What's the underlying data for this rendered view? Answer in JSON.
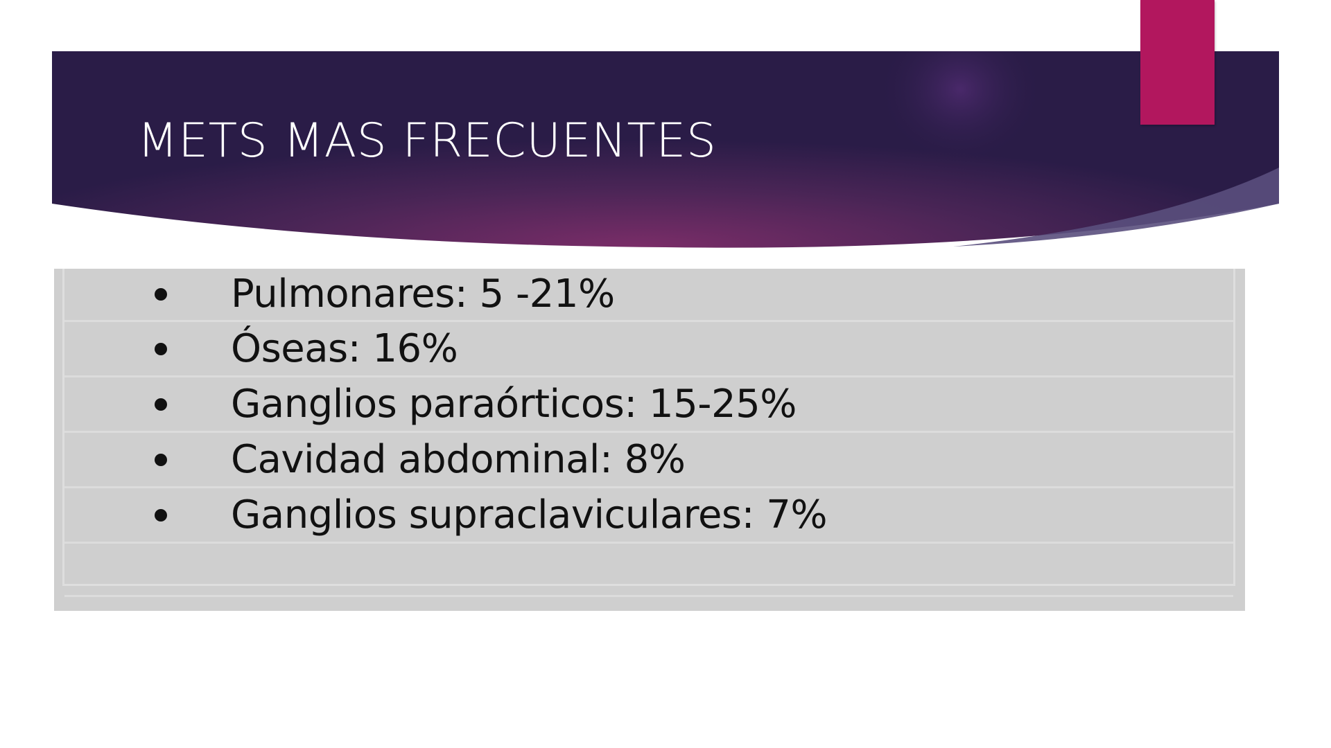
{
  "slide": {
    "title": "METS MAS FRECUENTES",
    "colors": {
      "banner_dark": "#2c1d4a",
      "banner_mid": "#6a2a62",
      "accent_tab": "#b2175e",
      "content_background": "#cfcfcf",
      "text": "#111111"
    }
  },
  "content": {
    "items": [
      {
        "label": "Pulmonares: 5 -21%"
      },
      {
        "label": "Óseas: 16%"
      },
      {
        "label": "Ganglios paraórticos: 15-25%"
      },
      {
        "label": "Cavidad abdominal: 8%"
      },
      {
        "label": "Ganglios supraclaviculares: 7%"
      }
    ]
  }
}
